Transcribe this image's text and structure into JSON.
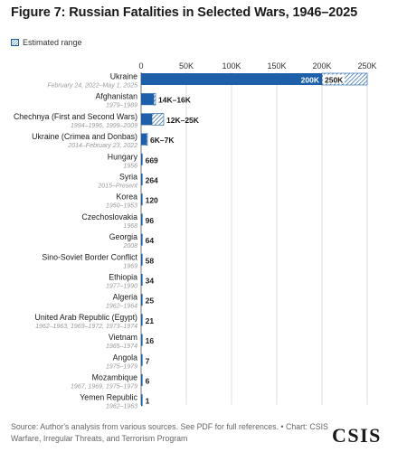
{
  "title": "Figure 7: Russian Fatalities in Selected Wars, 1946–2025",
  "legend": {
    "label": "Estimated range"
  },
  "source": "Source: Author's analysis from various sources. See PDF for full references. • Chart: CSIS Warfare, Irregular Threats, and Terrorism Program",
  "logo": "CSIS",
  "colors": {
    "bar": "#1d5fa8",
    "range": "#1d5fa8",
    "label_text": "#1a1a1a",
    "date_text": "#9a9a9a",
    "grid": "#d4d4d4"
  },
  "chart_data": {
    "type": "bar",
    "orientation": "horizontal",
    "xlim": [
      0,
      250000
    ],
    "x_ticks": [
      0,
      50000,
      100000,
      150000,
      200000,
      250000
    ],
    "x_tick_labels": [
      "0",
      "50K",
      "100K",
      "150K",
      "200K",
      "250K"
    ],
    "grid": true,
    "legend_position": "top-left",
    "categories": [
      {
        "name": "Ukraine",
        "dates": "February 24, 2022–May 1, 2025",
        "value": 200000,
        "range_max": 250000,
        "low_label": "200K",
        "high_label": "250K"
      },
      {
        "name": "Afghanistan",
        "dates": "1979–1989",
        "value": 14000,
        "range_max": 16000,
        "label": "14K–16K"
      },
      {
        "name": "Chechnya (First and Second Wars)",
        "dates": "1994–1996, 1999–2009",
        "value": 12000,
        "range_max": 25000,
        "label": "12K–25K"
      },
      {
        "name": "Ukraine (Crimea and Donbas)",
        "dates": "2014–February 23, 2022",
        "value": 6000,
        "range_max": 7000,
        "label": "6K–7K"
      },
      {
        "name": "Hungary",
        "dates": "1956",
        "value": 669,
        "label": "669"
      },
      {
        "name": "Syria",
        "dates": "2015–Present",
        "value": 264,
        "label": "264"
      },
      {
        "name": "Korea",
        "dates": "1950–1953",
        "value": 120,
        "label": "120"
      },
      {
        "name": "Czechoslovakia",
        "dates": "1968",
        "value": 96,
        "label": "96"
      },
      {
        "name": "Georgia",
        "dates": "2008",
        "value": 64,
        "label": "64"
      },
      {
        "name": "Sino-Soviet Border Conflict",
        "dates": "1969",
        "value": 58,
        "label": "58"
      },
      {
        "name": "Ethiopia",
        "dates": "1977–1990",
        "value": 34,
        "label": "34"
      },
      {
        "name": "Algeria",
        "dates": "1962–1964",
        "value": 25,
        "label": "25"
      },
      {
        "name": "United Arab Republic (Egypt)",
        "dates": "1962–1963, 1969–1972, 1973–1974",
        "value": 21,
        "label": "21"
      },
      {
        "name": "Vietnam",
        "dates": "1965–1974",
        "value": 16,
        "label": "16"
      },
      {
        "name": "Angola",
        "dates": "1975–1979",
        "value": 7,
        "label": "7"
      },
      {
        "name": "Mozambique",
        "dates": "1967, 1969, 1975–1979",
        "value": 6,
        "label": "6"
      },
      {
        "name": "Yemen Republic",
        "dates": "1962–1963",
        "value": 1,
        "label": "1"
      }
    ]
  }
}
